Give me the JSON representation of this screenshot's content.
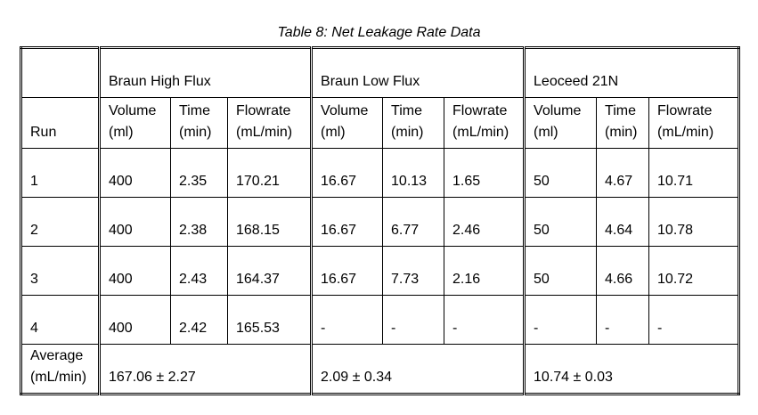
{
  "header": {
    "title": "Table 8: Net Leakage Rate Data"
  },
  "table": {
    "groups": [
      "Braun High Flux",
      "Braun Low Flux",
      "Leoceed 21N"
    ],
    "columns": [
      "Run",
      "Volume\n(ml)",
      "Time\n(min)",
      "Flowrate\n(mL/min)",
      "Volume\n(ml)",
      "Time\n(min)",
      "Flowrate\n(mL/min)",
      "Volume\n(ml)",
      "Time\n(min)",
      "Flowrate\n(mL/min)"
    ],
    "rows": [
      [
        "1",
        "400",
        "2.35",
        "170.21",
        "16.67",
        "10.13",
        "1.65",
        "50",
        "4.67",
        "10.71"
      ],
      [
        "2",
        "400",
        "2.38",
        "168.15",
        "16.67",
        "6.77",
        "2.46",
        "50",
        "4.64",
        "10.78"
      ],
      [
        "3",
        "400",
        "2.43",
        "164.37",
        "16.67",
        "7.73",
        "2.16",
        "50",
        "4.66",
        "10.72"
      ],
      [
        "4",
        "400",
        "2.42",
        "165.53",
        "-",
        "-",
        "-",
        "-",
        "-",
        "-"
      ]
    ],
    "average": {
      "label": "Average\n(mL/min)",
      "values": [
        "167.06 ± 2.27",
        "2.09 ± 0.34",
        "10.74 ± 0.03"
      ]
    }
  }
}
